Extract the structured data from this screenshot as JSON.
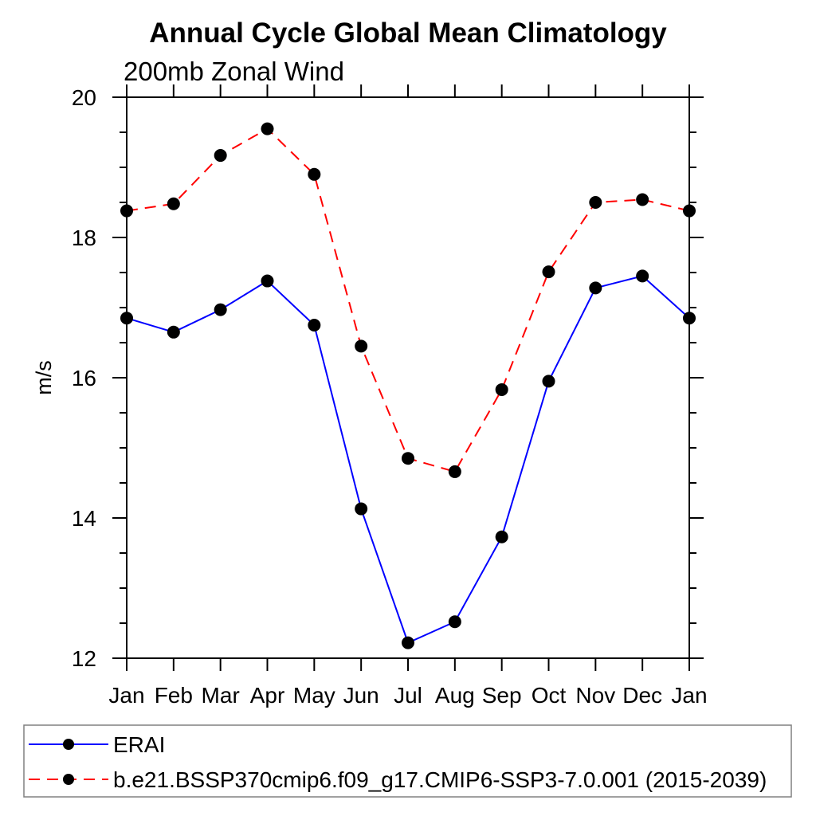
{
  "page": {
    "background": "#ffffff"
  },
  "chart_data": {
    "type": "line",
    "title": "Annual Cycle Global Mean Climatology",
    "subtitle": "200mb Zonal Wind",
    "ylabel": "m/s",
    "x_tick_labels": [
      "Jan",
      "Feb",
      "Mar",
      "Apr",
      "May",
      "Jun",
      "Jul",
      "Aug",
      "Sep",
      "Oct",
      "Nov",
      "Dec",
      "Jan"
    ],
    "ylim": [
      12,
      20
    ],
    "y_major_ticks": [
      12,
      14,
      16,
      18,
      20
    ],
    "y_minor_tick_step": 0.5,
    "grid": false,
    "legend_position": "bottom-left-box",
    "axis_color": "#000000",
    "marker_color": "#000000",
    "marker_shape": "filled-circle",
    "series": [
      {
        "name": "ERAI",
        "color": "#0000ff",
        "line_style": "solid",
        "values": [
          16.85,
          16.65,
          16.97,
          17.38,
          16.75,
          14.13,
          12.22,
          12.52,
          13.73,
          15.95,
          17.28,
          17.45,
          16.85
        ]
      },
      {
        "name": "b.e21.BSSP370cmip6.f09_g17.CMIP6-SSP3-7.0.001 (2015-2039)",
        "color": "#ff0000",
        "line_style": "dashed",
        "values": [
          18.38,
          18.48,
          19.17,
          19.55,
          18.9,
          16.45,
          14.85,
          14.66,
          15.83,
          17.51,
          18.5,
          18.54,
          18.38
        ]
      }
    ]
  }
}
